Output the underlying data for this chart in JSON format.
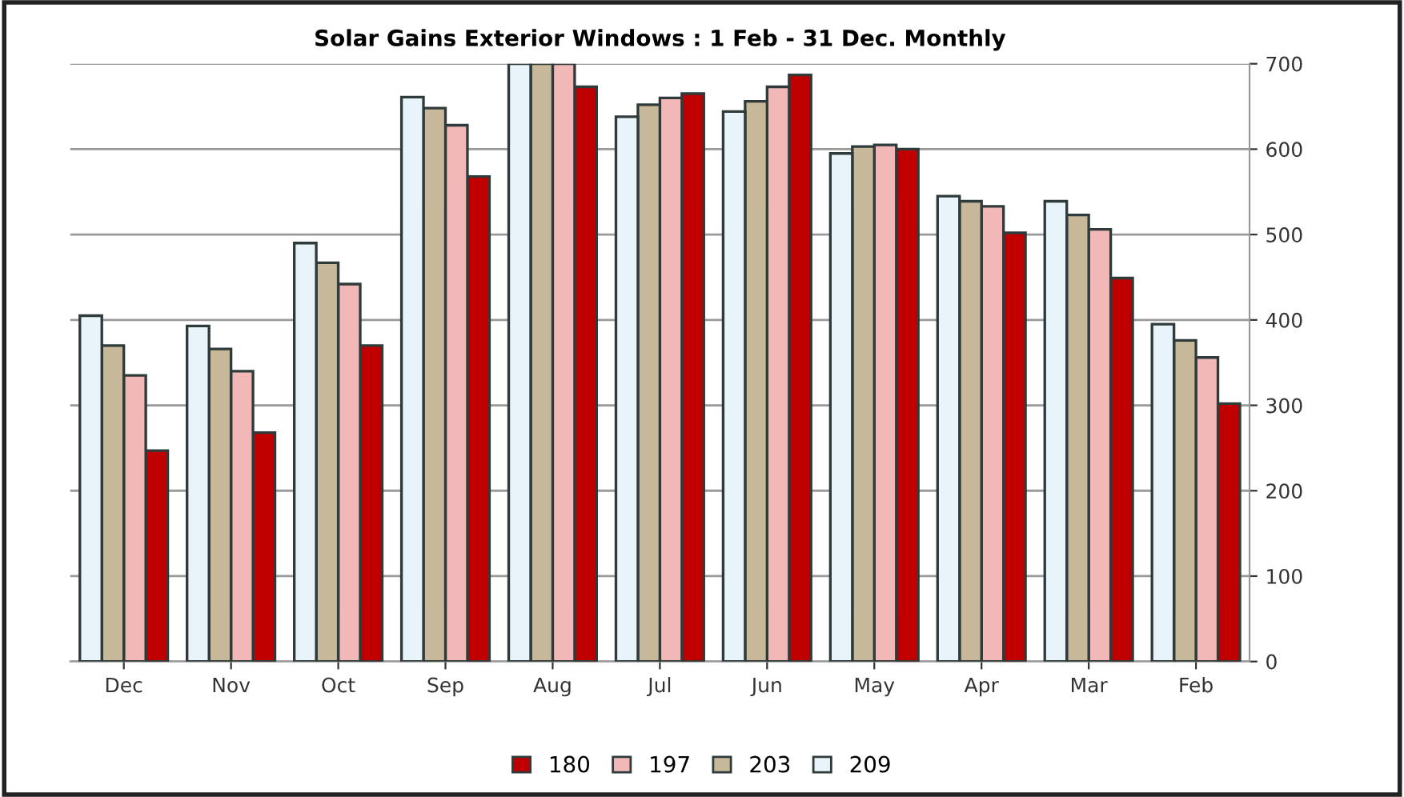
{
  "chart_data": {
    "type": "bar",
    "title": "Solar Gains Exterior Windows : 1 Feb - 31 Dec. Monthly",
    "categories": [
      "Dec",
      "Nov",
      "Oct",
      "Sep",
      "Aug",
      "Jul",
      "Jun",
      "May",
      "Apr",
      "Mar",
      "Feb"
    ],
    "series": [
      {
        "name": "180",
        "color": "#c00000",
        "values": [
          247,
          268,
          370,
          568,
          673,
          665,
          687,
          600,
          502,
          449,
          302
        ]
      },
      {
        "name": "197",
        "color": "#f2b8b8",
        "values": [
          335,
          340,
          442,
          628,
          700,
          660,
          673,
          605,
          533,
          506,
          356
        ]
      },
      {
        "name": "203",
        "color": "#c8b89a",
        "values": [
          370,
          366,
          467,
          648,
          700,
          652,
          656,
          603,
          539,
          523,
          376
        ]
      },
      {
        "name": "209",
        "color": "#e8f4fa",
        "values": [
          405,
          393,
          490,
          661,
          700,
          638,
          644,
          595,
          545,
          539,
          395
        ]
      }
    ],
    "ylim": [
      0,
      700
    ],
    "yticks": [
      0,
      100,
      200,
      300,
      400,
      500,
      600,
      700
    ],
    "grid": "y",
    "legend": "bottom"
  }
}
